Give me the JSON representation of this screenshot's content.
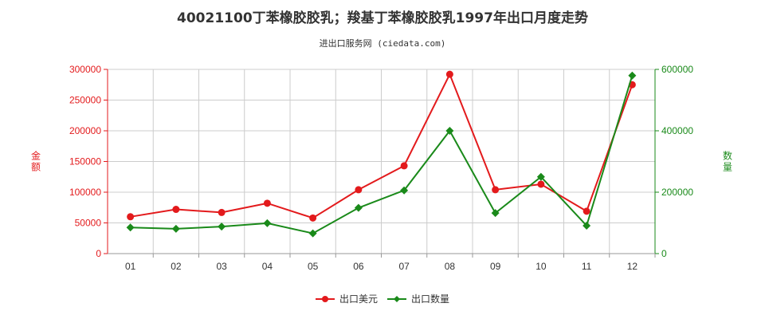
{
  "chart_data": {
    "type": "line",
    "title": "40021100丁苯橡胶胶乳；羧基丁苯橡胶胶乳1997年出口月度走势",
    "subtitle": "进出口服务网 (ciedata.com)",
    "categories": [
      "01",
      "02",
      "03",
      "04",
      "05",
      "06",
      "07",
      "08",
      "09",
      "10",
      "11",
      "12"
    ],
    "ylabel_left": "金额",
    "ylabel_right": "数量",
    "ylim_left": [
      0,
      300000
    ],
    "ylim_right": [
      0,
      600000
    ],
    "yticks_left": [
      "0",
      "50000",
      "100000",
      "150000",
      "200000",
      "250000",
      "300000"
    ],
    "yticks_right": [
      "0",
      "200000",
      "400000",
      "600000"
    ],
    "grid": true,
    "legend_position": "bottom-center",
    "series": [
      {
        "name": "出口美元",
        "axis": "left",
        "color": "#e31a1c",
        "marker": "circle",
        "values": [
          60000,
          72000,
          67000,
          82000,
          58000,
          104000,
          143000,
          292000,
          104000,
          113000,
          69000,
          275000
        ]
      },
      {
        "name": "出口数量",
        "axis": "right",
        "color": "#1a8a1a",
        "marker": "diamond",
        "values": [
          85000,
          81000,
          88000,
          99000,
          66000,
          149000,
          206000,
          400000,
          132000,
          250000,
          91000,
          580000
        ]
      }
    ],
    "colors": {
      "left_axis": "#e31a1c",
      "right_axis": "#1a8a1a",
      "grid": "#cccccc"
    }
  }
}
